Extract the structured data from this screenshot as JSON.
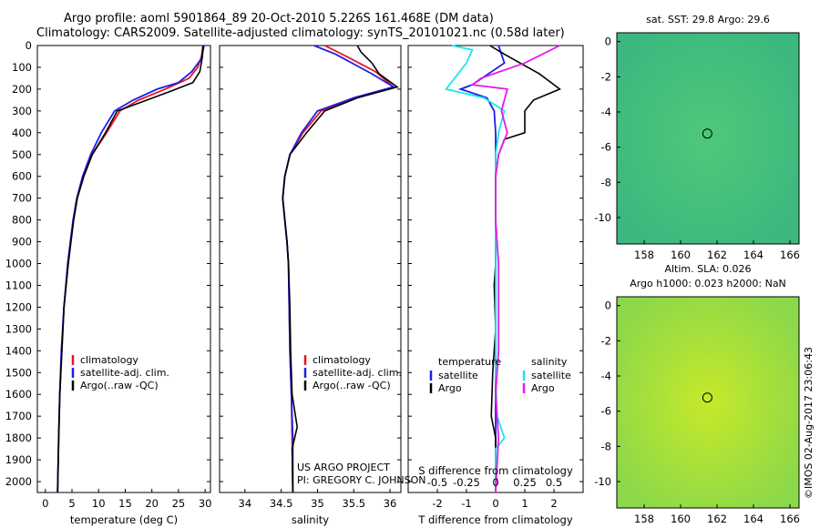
{
  "header": {
    "line1": "Argo profile: aoml 5901864_89 20-Oct-2010 5.226S 161.468E (DM data)",
    "line2": "Climatology: CARS2009. Satellite-adjusted climatology: synTS_20101021.nc (0.58d later)"
  },
  "colors": {
    "climatology": "#e8141e",
    "satellite": "#1e1ee6",
    "argo": "#000000",
    "sat_cyan": "#19e6ee",
    "argo_magenta": "#e619e6"
  },
  "chart_data": [
    {
      "type": "line",
      "id": "temperature",
      "xlabel": "temperature (deg C)",
      "xlim": [
        -1.5,
        31
      ],
      "ylim": [
        2050,
        0
      ],
      "xticks": [
        0,
        5,
        10,
        15,
        20,
        25,
        30
      ],
      "yticks": [
        0,
        100,
        200,
        300,
        400,
        500,
        600,
        700,
        800,
        900,
        1000,
        1100,
        1200,
        1300,
        1400,
        1500,
        1600,
        1700,
        1800,
        1900,
        2000
      ],
      "legend": [
        "climatology",
        "satellite-adj. clim.",
        "Argo(..raw -QC)"
      ],
      "series": [
        {
          "name": "climatology",
          "color": "#e8141e",
          "points": [
            [
              29.6,
              0
            ],
            [
              29.3,
              50
            ],
            [
              28.6,
              100
            ],
            [
              27.0,
              150
            ],
            [
              22.5,
              200
            ],
            [
              17.5,
              250
            ],
            [
              14.0,
              300
            ],
            [
              11.5,
              400
            ],
            [
              8.8,
              500
            ],
            [
              7.2,
              600
            ],
            [
              6.0,
              700
            ],
            [
              5.3,
              800
            ],
            [
              4.8,
              900
            ],
            [
              4.3,
              1000
            ],
            [
              3.5,
              1200
            ],
            [
              3.1,
              1400
            ],
            [
              2.7,
              1600
            ],
            [
              2.5,
              1800
            ],
            [
              2.3,
              2050
            ]
          ]
        },
        {
          "name": "satellite-adj. clim.",
          "color": "#1e1ee6",
          "points": [
            [
              29.8,
              0
            ],
            [
              29.3,
              60
            ],
            [
              27.5,
              120
            ],
            [
              25.0,
              170
            ],
            [
              21.0,
              200
            ],
            [
              16.5,
              250
            ],
            [
              13.0,
              300
            ],
            [
              10.5,
              400
            ],
            [
              8.5,
              500
            ],
            [
              7.0,
              600
            ],
            [
              5.9,
              700
            ],
            [
              5.2,
              800
            ],
            [
              4.7,
              900
            ],
            [
              4.2,
              1000
            ],
            [
              3.5,
              1200
            ],
            [
              3.0,
              1400
            ],
            [
              2.7,
              1600
            ],
            [
              2.5,
              1800
            ],
            [
              2.3,
              2050
            ]
          ]
        },
        {
          "name": "Argo(..raw -QC)",
          "color": "#000000",
          "points": [
            [
              29.6,
              0
            ],
            [
              29.5,
              50
            ],
            [
              29.0,
              120
            ],
            [
              27.7,
              170
            ],
            [
              23.5,
              210
            ],
            [
              18.0,
              260
            ],
            [
              13.5,
              300
            ],
            [
              11.3,
              400
            ],
            [
              8.8,
              500
            ],
            [
              7.2,
              600
            ],
            [
              6.0,
              700
            ],
            [
              5.3,
              800
            ],
            [
              4.8,
              900
            ],
            [
              4.3,
              1000
            ],
            [
              3.5,
              1200
            ],
            [
              3.1,
              1400
            ],
            [
              2.7,
              1600
            ],
            [
              2.5,
              1800
            ],
            [
              2.3,
              2050
            ]
          ]
        }
      ]
    },
    {
      "type": "line",
      "id": "salinity",
      "xlabel": "salinity",
      "xlim": [
        33.65,
        36.15
      ],
      "ylim": [
        2050,
        0
      ],
      "xticks": [
        34,
        34.5,
        35,
        35.5,
        36
      ],
      "legend": [
        "climatology",
        "satellite-adj. clim.",
        "Argo(..raw -QC)"
      ],
      "annotation": [
        "US ARGO PROJECT",
        "PI: GREGORY C. JOHNSON"
      ],
      "series": [
        {
          "name": "climatology",
          "color": "#e8141e",
          "points": [
            [
              35.1,
              0
            ],
            [
              35.4,
              50
            ],
            [
              35.8,
              120
            ],
            [
              36.05,
              190
            ],
            [
              35.5,
              240
            ],
            [
              35.05,
              300
            ],
            [
              34.8,
              400
            ],
            [
              34.62,
              500
            ],
            [
              34.55,
              600
            ],
            [
              34.52,
              700
            ],
            [
              34.55,
              800
            ],
            [
              34.58,
              900
            ],
            [
              34.6,
              1000
            ],
            [
              34.61,
              1200
            ],
            [
              34.62,
              1400
            ],
            [
              34.64,
              1600
            ],
            [
              34.65,
              1800
            ],
            [
              34.66,
              2050
            ]
          ]
        },
        {
          "name": "satellite-adj. clim.",
          "color": "#1e1ee6",
          "points": [
            [
              34.95,
              0
            ],
            [
              35.25,
              40
            ],
            [
              35.75,
              130
            ],
            [
              36.05,
              190
            ],
            [
              35.5,
              240
            ],
            [
              35.0,
              300
            ],
            [
              34.78,
              400
            ],
            [
              34.62,
              500
            ],
            [
              34.55,
              600
            ],
            [
              34.52,
              700
            ],
            [
              34.55,
              800
            ],
            [
              34.58,
              900
            ],
            [
              34.6,
              1000
            ],
            [
              34.61,
              1200
            ],
            [
              34.62,
              1400
            ],
            [
              34.64,
              1600
            ],
            [
              34.66,
              1800
            ],
            [
              34.66,
              2050
            ]
          ]
        },
        {
          "name": "Argo(..raw -QC)",
          "color": "#000000",
          "points": [
            [
              35.55,
              0
            ],
            [
              35.6,
              30
            ],
            [
              35.75,
              80
            ],
            [
              35.85,
              130
            ],
            [
              36.1,
              190
            ],
            [
              35.55,
              240
            ],
            [
              35.1,
              300
            ],
            [
              34.85,
              400
            ],
            [
              34.62,
              500
            ],
            [
              34.55,
              600
            ],
            [
              34.52,
              700
            ],
            [
              34.55,
              800
            ],
            [
              34.58,
              900
            ],
            [
              34.6,
              1000
            ],
            [
              34.62,
              1200
            ],
            [
              34.63,
              1400
            ],
            [
              34.65,
              1600
            ],
            [
              34.72,
              1750
            ],
            [
              34.65,
              1850
            ],
            [
              34.66,
              2050
            ]
          ]
        }
      ]
    },
    {
      "type": "line",
      "id": "differences",
      "xlabel": "T difference from climatology",
      "xlabel_top": "S difference from climatology",
      "xlim": [
        -3,
        3
      ],
      "ylim": [
        2050,
        0
      ],
      "xticks": [
        -2,
        -1,
        0,
        1,
        2
      ],
      "xticks_top": [
        -0.5,
        -0.25,
        0,
        0.25,
        0.5
      ],
      "xticks_top_labels": [
        "-0.5",
        "-0.25",
        "0",
        "0.25",
        "0.5"
      ],
      "legend_left": {
        "title": "temperature",
        "items": [
          "satellite",
          "Argo"
        ]
      },
      "legend_right": {
        "title": "salinity",
        "items": [
          "satellite",
          "Argo"
        ]
      },
      "series": [
        {
          "name": "temperature satellite",
          "color": "#1e1ee6",
          "points": [
            [
              0.1,
              0
            ],
            [
              0.2,
              40
            ],
            [
              0.3,
              80
            ],
            [
              -0.8,
              180
            ],
            [
              -1.2,
              200
            ],
            [
              -0.3,
              240
            ],
            [
              -0.05,
              300
            ],
            [
              0,
              400
            ],
            [
              0,
              600
            ],
            [
              0,
              800
            ],
            [
              0,
              1000
            ],
            [
              0,
              1200
            ],
            [
              0,
              1400
            ],
            [
              0,
              1600
            ],
            [
              0,
              1800
            ],
            [
              0,
              2050
            ]
          ]
        },
        {
          "name": "temperature Argo",
          "color": "#000000",
          "points": [
            [
              -0.2,
              0
            ],
            [
              0.3,
              40
            ],
            [
              1.5,
              130
            ],
            [
              2.2,
              200
            ],
            [
              1.3,
              250
            ],
            [
              1.0,
              300
            ],
            [
              1.0,
              400
            ],
            [
              0.3,
              430
            ],
            [
              0.1,
              500
            ],
            [
              0,
              600
            ],
            [
              0,
              800
            ],
            [
              0,
              1000
            ],
            [
              -0.05,
              1100
            ],
            [
              0,
              1300
            ],
            [
              -0.1,
              1500
            ],
            [
              -0.15,
              1700
            ],
            [
              0,
              1800
            ],
            [
              0,
              2050
            ]
          ]
        },
        {
          "name": "salinity satellite",
          "color": "#19e6ee",
          "points": [
            [
              -1.5,
              0
            ],
            [
              -0.8,
              20
            ],
            [
              -1.0,
              80
            ],
            [
              -1.7,
              200
            ],
            [
              -0.4,
              240
            ],
            [
              0.3,
              300
            ],
            [
              0.1,
              400
            ],
            [
              0,
              500
            ],
            [
              0,
              700
            ],
            [
              0,
              1000
            ],
            [
              0,
              1300
            ],
            [
              0,
              1500
            ],
            [
              0.05,
              1700
            ],
            [
              0.3,
              1800
            ],
            [
              0,
              1850
            ],
            [
              0,
              2050
            ]
          ]
        },
        {
          "name": "salinity Argo",
          "color": "#e619e6",
          "points": [
            [
              2.2,
              0
            ],
            [
              1.0,
              80
            ],
            [
              -0.5,
              150
            ],
            [
              -0.8,
              180
            ],
            [
              0.4,
              200
            ],
            [
              0.2,
              300
            ],
            [
              0.4,
              400
            ],
            [
              0.1,
              500
            ],
            [
              0,
              600
            ],
            [
              0,
              800
            ],
            [
              0.1,
              1000
            ],
            [
              0.1,
              1200
            ],
            [
              0.1,
              1400
            ],
            [
              0,
              1600
            ],
            [
              0.1,
              1800
            ],
            [
              0,
              2050
            ]
          ]
        }
      ]
    },
    {
      "type": "heatmap",
      "id": "sst_map",
      "title": "sat. SST: 29.8 Argo: 29.6",
      "xlim": [
        156.5,
        166.5
      ],
      "ylim": [
        -11.5,
        0.5
      ],
      "xticks": [
        158,
        160,
        162,
        164,
        166
      ],
      "yticks": [
        0,
        -2,
        -4,
        -6,
        -8,
        -10
      ],
      "marker": {
        "lon": 161.468,
        "lat": -5.226
      }
    },
    {
      "type": "heatmap",
      "id": "sla_map",
      "title": [
        "Altim. SLA: 0.026",
        "Argo h1000: 0.023 h2000: NaN"
      ],
      "xlim": [
        156.5,
        166.5
      ],
      "ylim": [
        -11.5,
        0.5
      ],
      "xticks": [
        158,
        160,
        162,
        164,
        166
      ],
      "yticks": [
        0,
        -2,
        -4,
        -6,
        -8,
        -10
      ],
      "marker": {
        "lon": 161.468,
        "lat": -5.226
      }
    }
  ],
  "footer": {
    "stamp": "©IMOS 02-Aug-2017 23:06:43"
  }
}
